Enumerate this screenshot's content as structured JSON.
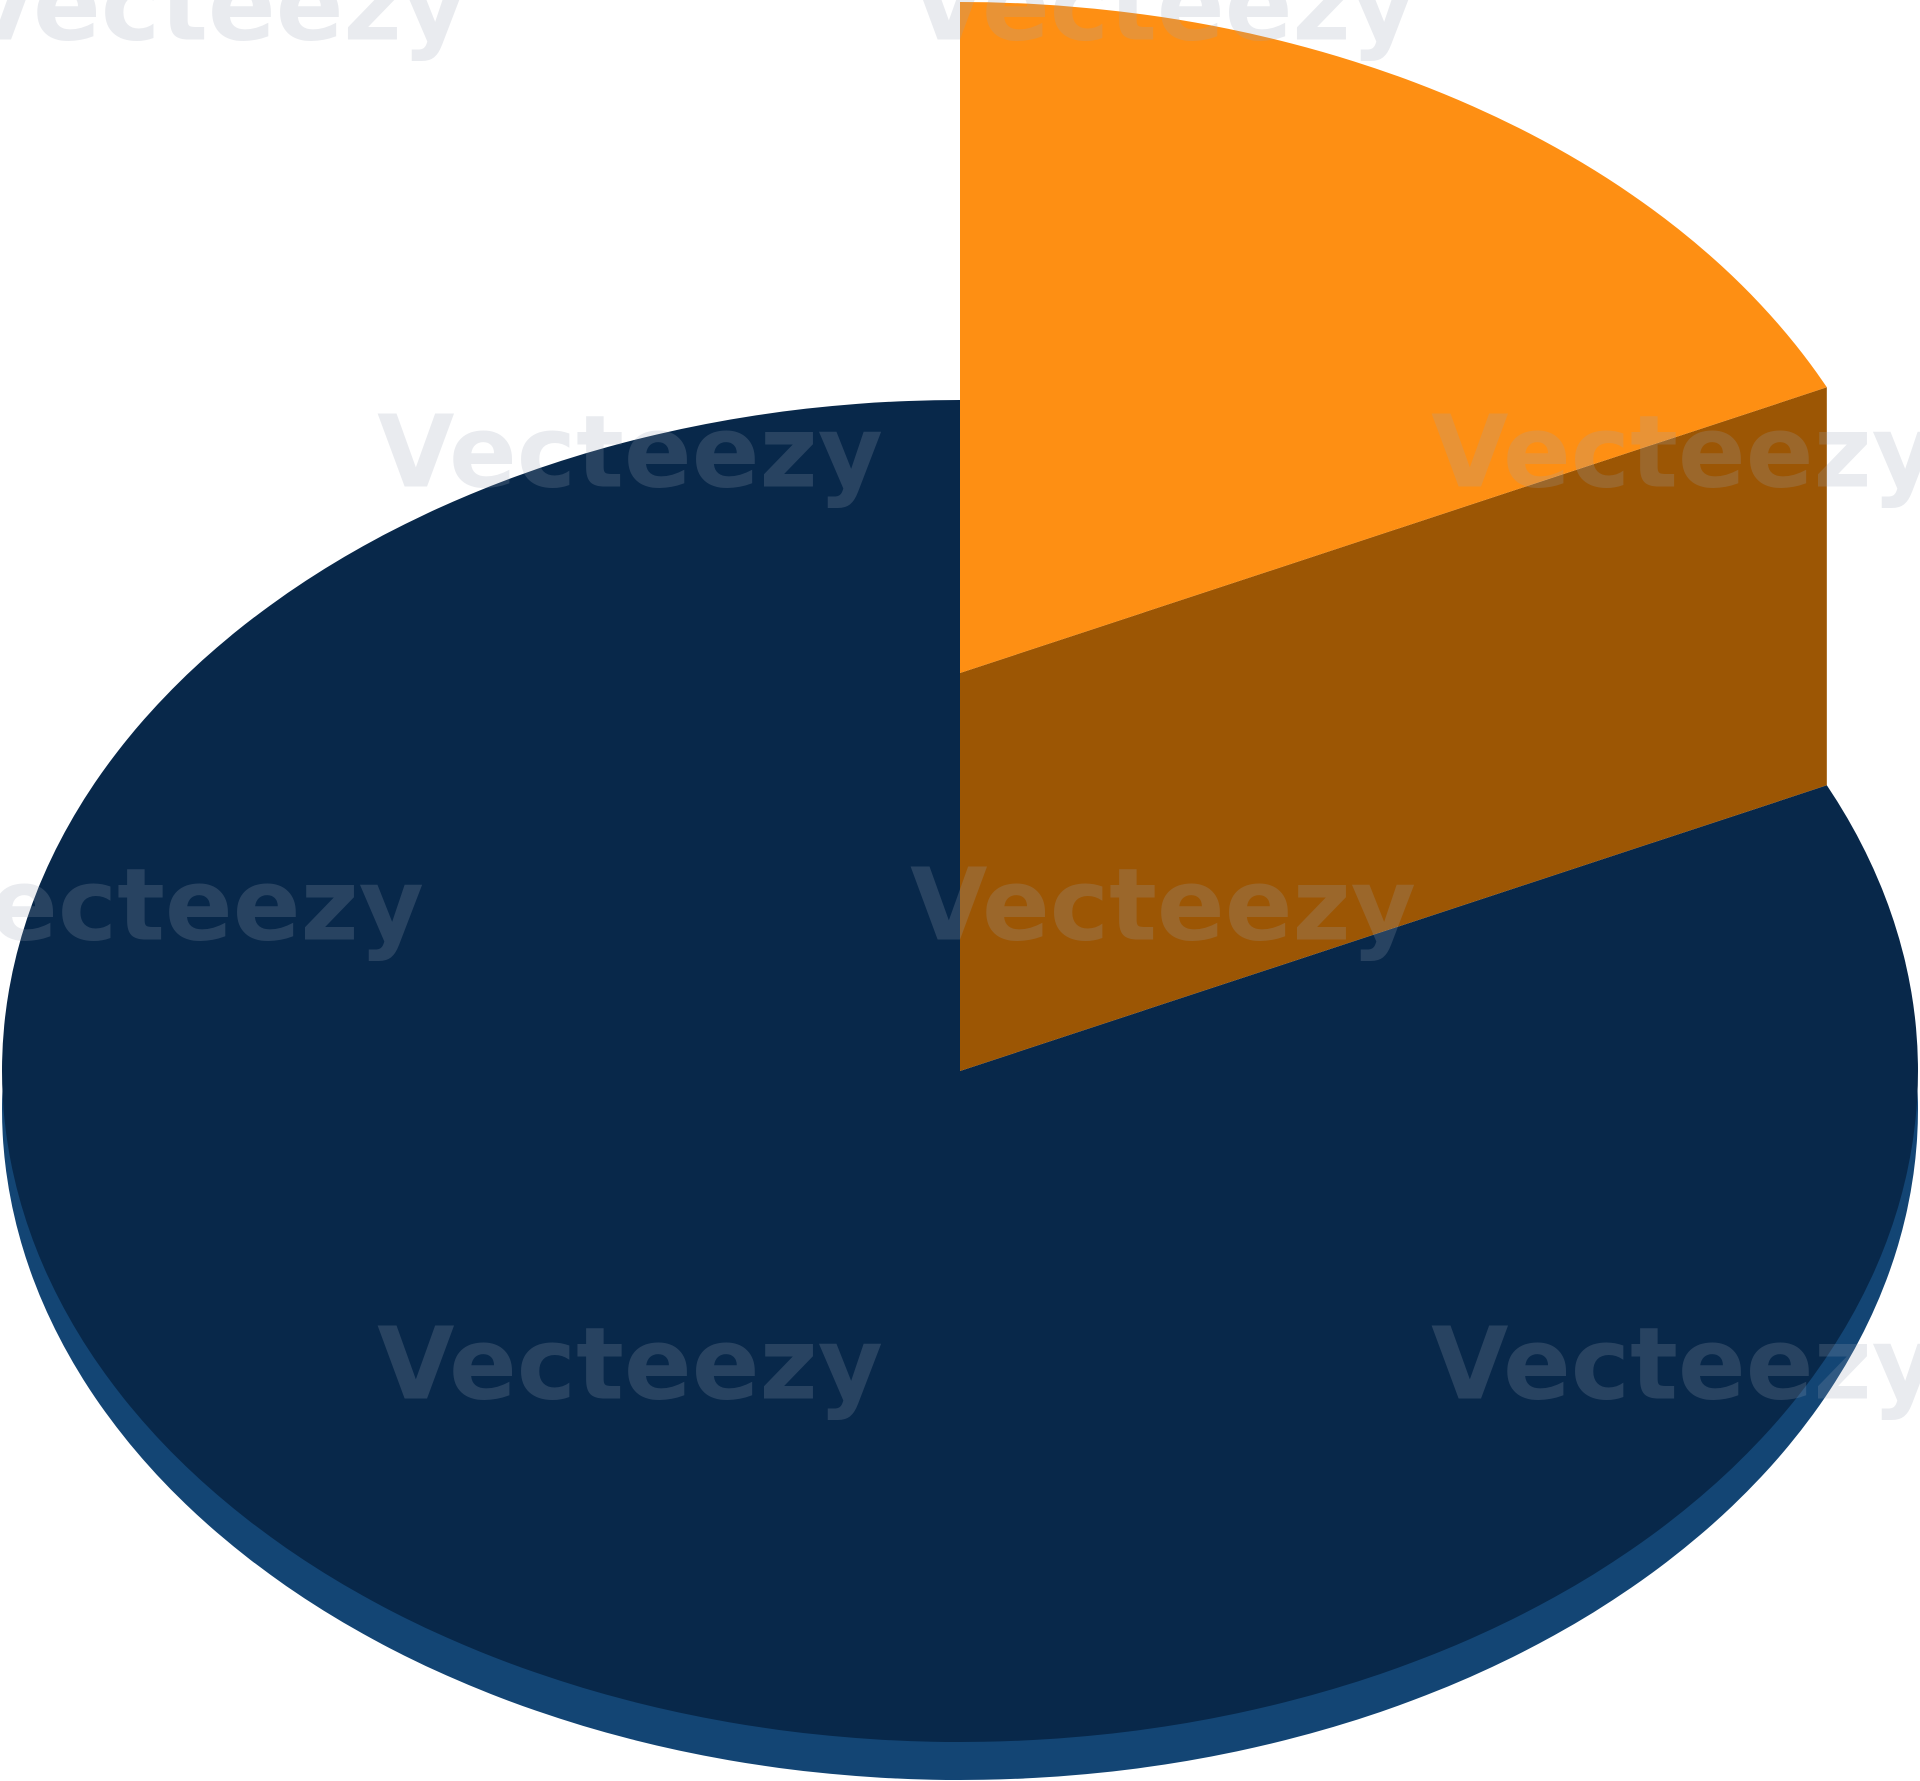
{
  "chart_data": {
    "type": "pie",
    "categories": [
      null,
      null
    ],
    "values": [
      18,
      82
    ],
    "colors": [
      "#fe8f13",
      "#08284a"
    ],
    "side_colors": [
      "#9c5604",
      "#134574"
    ]
  },
  "watermark": "Vecteezy"
}
